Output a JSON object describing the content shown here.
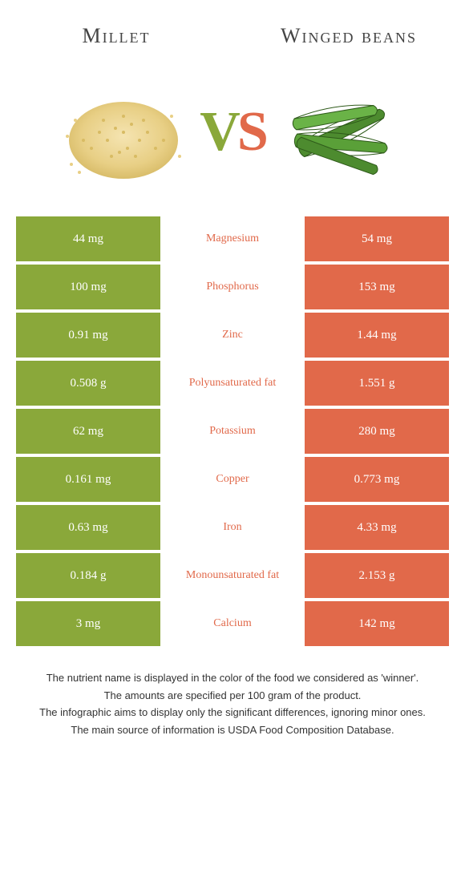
{
  "colors": {
    "green": "#8aa83a",
    "orange": "#e1694a",
    "text": "#444444",
    "footer": "#333333",
    "row_gap": "#ffffff"
  },
  "foods": {
    "left": {
      "name": "Millet"
    },
    "right": {
      "name": "Winged beans"
    }
  },
  "vs": {
    "v": "V",
    "s": "S"
  },
  "rows": [
    {
      "nutrient": "Magnesium",
      "left": "44 mg",
      "right": "54 mg",
      "winner": "right"
    },
    {
      "nutrient": "Phosphorus",
      "left": "100 mg",
      "right": "153 mg",
      "winner": "right"
    },
    {
      "nutrient": "Zinc",
      "left": "0.91 mg",
      "right": "1.44 mg",
      "winner": "right"
    },
    {
      "nutrient": "Polyunsaturated fat",
      "left": "0.508 g",
      "right": "1.551 g",
      "winner": "right"
    },
    {
      "nutrient": "Potassium",
      "left": "62 mg",
      "right": "280 mg",
      "winner": "right"
    },
    {
      "nutrient": "Copper",
      "left": "0.161 mg",
      "right": "0.773 mg",
      "winner": "right"
    },
    {
      "nutrient": "Iron",
      "left": "0.63 mg",
      "right": "4.33 mg",
      "winner": "right"
    },
    {
      "nutrient": "Monounsaturated fat",
      "left": "0.184 g",
      "right": "2.153 g",
      "winner": "right"
    },
    {
      "nutrient": "Calcium",
      "left": "3 mg",
      "right": "142 mg",
      "winner": "right"
    }
  ],
  "footer": [
    "The nutrient name is displayed in the color of the food we considered as 'winner'.",
    "The amounts are specified per 100 gram of the product.",
    "The infographic aims to display only the significant differences, ignoring minor ones.",
    "The main source of information is USDA Food Composition Database."
  ]
}
